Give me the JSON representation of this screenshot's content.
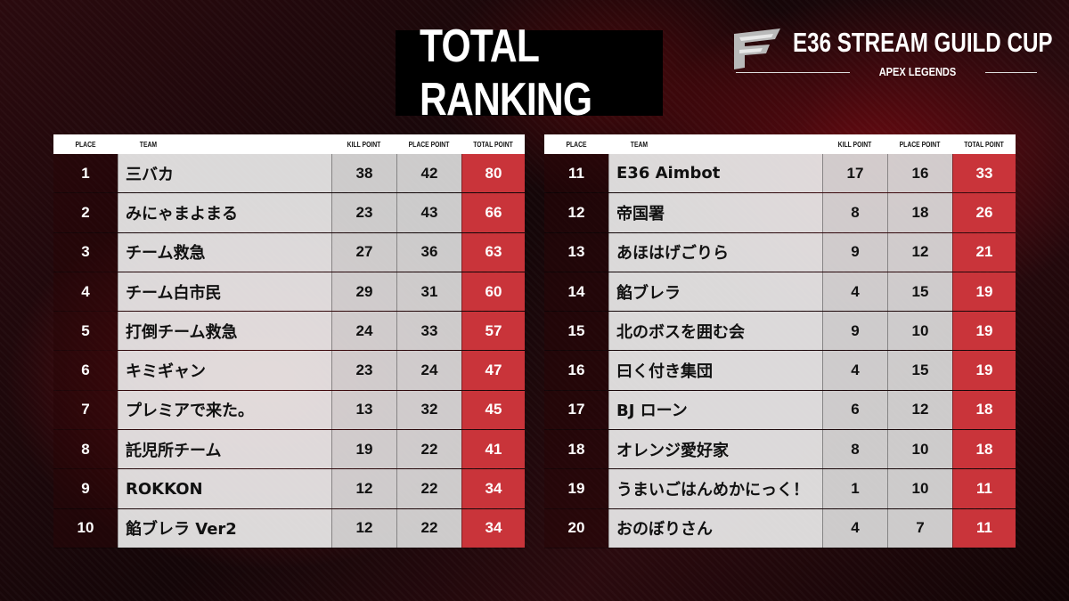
{
  "title": "TOTAL RANKING",
  "event": {
    "name": "E36 STREAM GUILD CUP",
    "subtitle": "APEX LEGENDS"
  },
  "headers": {
    "place": "PLACE",
    "team": "TEAM",
    "kill_point": "KILL POINT",
    "place_point": "PLACE POINT",
    "total_point": "TOTAL POINT"
  },
  "colors": {
    "accent": "#c9343a",
    "row_light": "#ebebeb"
  },
  "left": [
    {
      "place": "1",
      "team": "三バカ",
      "kill": "38",
      "placept": "42",
      "total": "80"
    },
    {
      "place": "2",
      "team": "みにゃまよまる",
      "kill": "23",
      "placept": "43",
      "total": "66"
    },
    {
      "place": "3",
      "team": "チーム救急",
      "kill": "27",
      "placept": "36",
      "total": "63"
    },
    {
      "place": "4",
      "team": "チーム白市民",
      "kill": "29",
      "placept": "31",
      "total": "60"
    },
    {
      "place": "5",
      "team": "打倒チーム救急",
      "kill": "24",
      "placept": "33",
      "total": "57"
    },
    {
      "place": "6",
      "team": "キミギャン",
      "kill": "23",
      "placept": "24",
      "total": "47"
    },
    {
      "place": "7",
      "team": "プレミアで来た。",
      "kill": "13",
      "placept": "32",
      "total": "45"
    },
    {
      "place": "8",
      "team": "託児所チーム",
      "kill": "19",
      "placept": "22",
      "total": "41"
    },
    {
      "place": "9",
      "team": "ROKKON",
      "kill": "12",
      "placept": "22",
      "total": "34"
    },
    {
      "place": "10",
      "team": "餡ブレラ Ver2",
      "kill": "12",
      "placept": "22",
      "total": "34"
    }
  ],
  "right": [
    {
      "place": "11",
      "team": "E36 Aimbot",
      "kill": "17",
      "placept": "16",
      "total": "33"
    },
    {
      "place": "12",
      "team": "帝国署",
      "kill": "8",
      "placept": "18",
      "total": "26"
    },
    {
      "place": "13",
      "team": "あほはげごりら",
      "kill": "9",
      "placept": "12",
      "total": "21"
    },
    {
      "place": "14",
      "team": "餡ブレラ",
      "kill": "4",
      "placept": "15",
      "total": "19"
    },
    {
      "place": "15",
      "team": "北のボスを囲む会",
      "kill": "9",
      "placept": "10",
      "total": "19"
    },
    {
      "place": "16",
      "team": "曰く付き集団",
      "kill": "4",
      "placept": "15",
      "total": "19"
    },
    {
      "place": "17",
      "team": "BJ ローン",
      "kill": "6",
      "placept": "12",
      "total": "18"
    },
    {
      "place": "18",
      "team": "オレンジ愛好家",
      "kill": "8",
      "placept": "10",
      "total": "18"
    },
    {
      "place": "19",
      "team": "うまいごはんめかにっく！",
      "kill": "1",
      "placept": "10",
      "total": "11"
    },
    {
      "place": "20",
      "team": "おのぼりさん",
      "kill": "4",
      "placept": "7",
      "total": "11"
    }
  ]
}
